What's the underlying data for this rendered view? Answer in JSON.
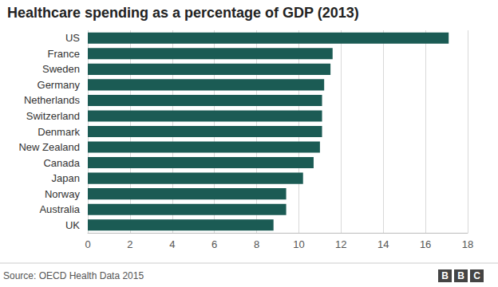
{
  "chart_data": {
    "type": "bar",
    "title": "Healthcare spending as a percentage of GDP (2013)",
    "orientation": "horizontal",
    "categories": [
      "US",
      "France",
      "Sweden",
      "Germany",
      "Netherlands",
      "Switzerland",
      "Denmark",
      "New Zealand",
      "Canada",
      "Japan",
      "Norway",
      "Australia",
      "UK"
    ],
    "values": [
      17.1,
      11.6,
      11.5,
      11.2,
      11.1,
      11.1,
      11.1,
      11.0,
      10.7,
      10.2,
      9.4,
      9.4,
      8.8
    ],
    "color": "#1b5b54",
    "xlim": [
      0,
      18
    ],
    "xticks": [
      0,
      2,
      4,
      6,
      8,
      10,
      12,
      14,
      16,
      18
    ],
    "grid": true,
    "source": "Source: OECD Health Data 2015",
    "logo": "BBC"
  }
}
